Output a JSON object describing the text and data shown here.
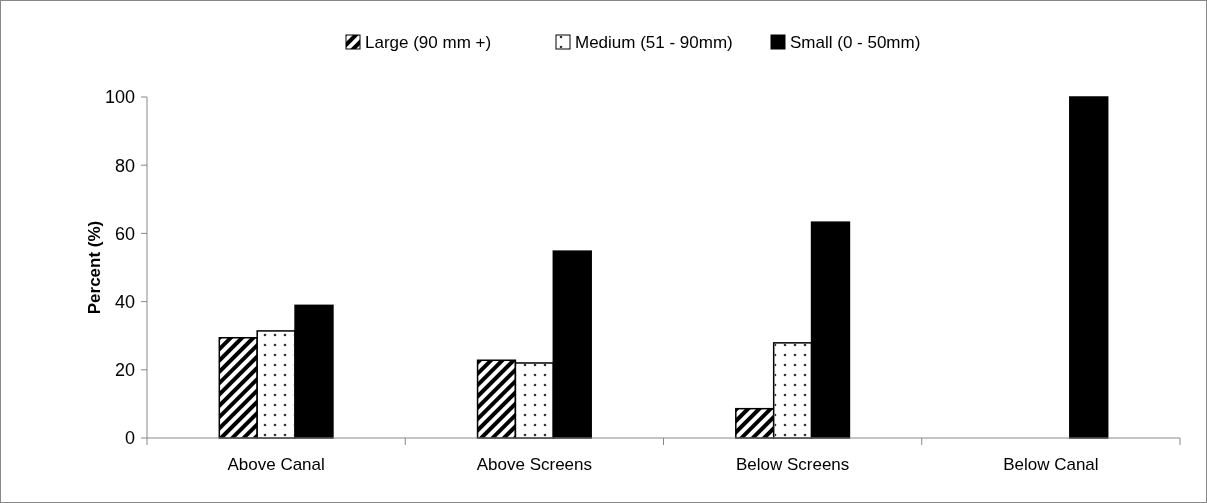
{
  "chart_data": {
    "type": "bar",
    "ylabel": "Percent (%)",
    "categories": [
      "Above Canal",
      "Above Screens",
      "Below Screens",
      "Below Canal"
    ],
    "series": [
      {
        "name": "Large (90 mm +)",
        "color": "#000000",
        "values": [
          29.4,
          22.8,
          8.6,
          0
        ]
      },
      {
        "name": "Medium (51 - 90mm)",
        "color": "#ffffff",
        "values": [
          31.4,
          22.0,
          27.9,
          0
        ]
      },
      {
        "name": "Small (0 - 50mm)",
        "color": "#000000",
        "values": [
          38.9,
          54.8,
          63.3,
          100
        ]
      }
    ],
    "ylim": [
      0,
      100
    ],
    "yticks": [
      0,
      20,
      40,
      60,
      80,
      100
    ],
    "grid": false,
    "legend": "top"
  }
}
